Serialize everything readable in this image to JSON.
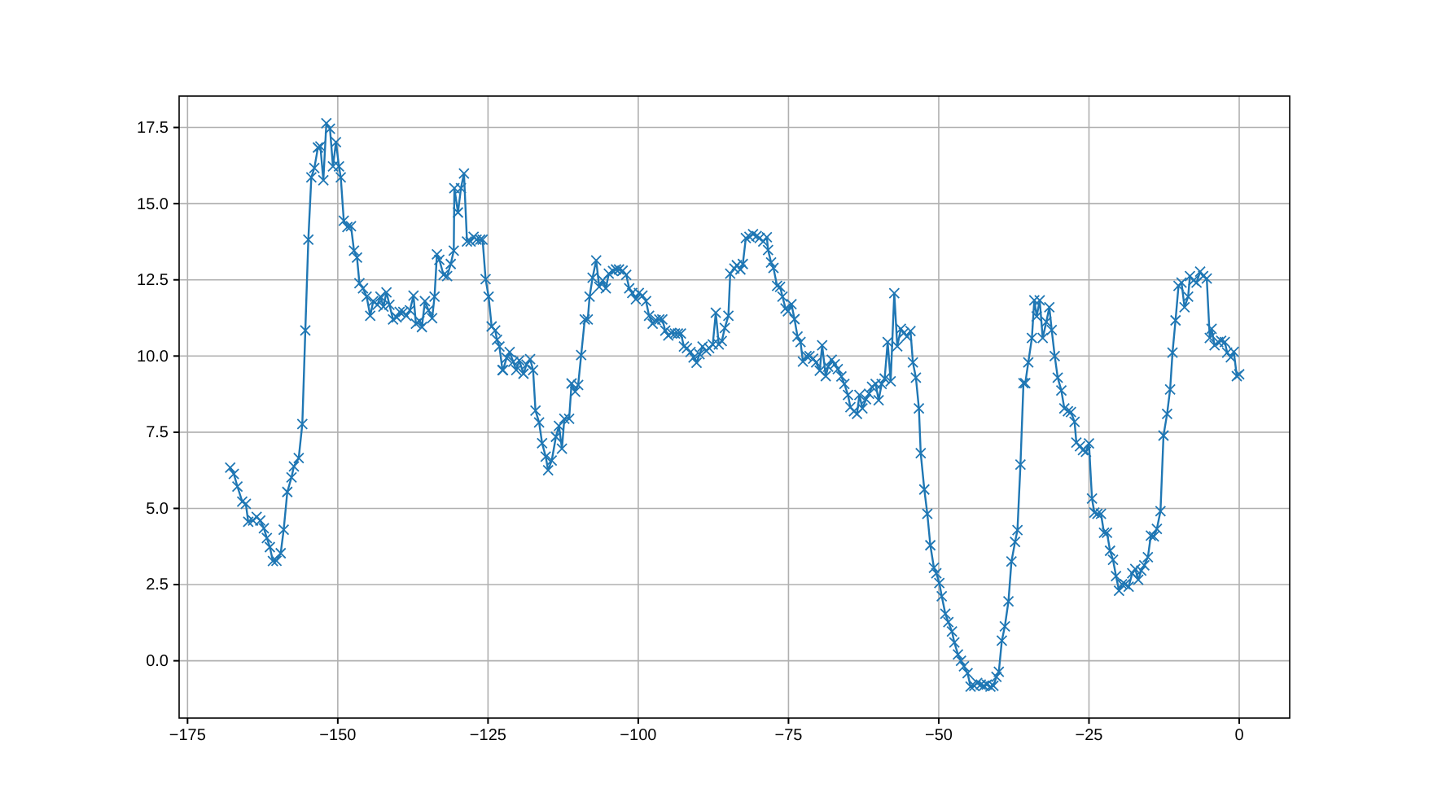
{
  "chart_data": {
    "type": "line",
    "color": "#1f77b4",
    "marker": "cross",
    "line_style": "solid",
    "grid": true,
    "xlim": [
      -176.4,
      8.4
    ],
    "ylim": [
      -1.88,
      18.53
    ],
    "xticks": [
      {
        "value": -175,
        "label": "−175"
      },
      {
        "value": -150,
        "label": "−150"
      },
      {
        "value": -125,
        "label": "−125"
      },
      {
        "value": -100,
        "label": "−100"
      },
      {
        "value": -75,
        "label": "−75"
      },
      {
        "value": -50,
        "label": "−50"
      },
      {
        "value": -25,
        "label": "−25"
      },
      0
    ],
    "yticks": [
      {
        "value": 0,
        "label": "0.0"
      },
      2.5,
      {
        "value": 5,
        "label": "5.0"
      },
      7.5,
      {
        "value": 10,
        "label": "10.0"
      },
      12.5,
      {
        "value": 15,
        "label": "15.0"
      },
      17.5
    ],
    "x": [
      -167.9,
      -167.3,
      -166.7,
      -165.9,
      -165.3,
      -164.9,
      -164.1,
      -163.5,
      -162.9,
      -162.3,
      -161.8,
      -161.3,
      -160.8,
      -160.2,
      -159.5,
      -159.0,
      -158.4,
      -157.7,
      -157.3,
      -156.5,
      -155.9,
      -155.4,
      -154.9,
      -154.4,
      -153.9,
      -153.3,
      -152.9,
      -152.4,
      -151.9,
      -151.3,
      -150.8,
      -150.3,
      -149.8,
      -149.5,
      -149.0,
      -148.4,
      -147.8,
      -147.3,
      -146.8,
      -146.4,
      -145.8,
      -145.2,
      -144.6,
      -144.1,
      -143.4,
      -142.9,
      -142.4,
      -141.9,
      -141.4,
      -140.8,
      -140.2,
      -139.7,
      -139.1,
      -138.6,
      -138.0,
      -137.4,
      -137.0,
      -136.4,
      -136.0,
      -135.5,
      -134.9,
      -134.3,
      -133.9,
      -133.5,
      -133.1,
      -132.4,
      -131.8,
      -131.2,
      -130.7,
      -130.6,
      -130.0,
      -129.5,
      -129.0,
      -128.5,
      -127.9,
      -127.4,
      -126.9,
      -126.3,
      -125.9,
      -125.4,
      -124.9,
      -124.4,
      -123.8,
      -123.5,
      -123.1,
      -122.6,
      -122.5,
      -121.9,
      -121.4,
      -120.8,
      -120.3,
      -119.8,
      -119.1,
      -118.6,
      -118.0,
      -117.5,
      -117.1,
      -116.5,
      -116.0,
      -115.4,
      -115.0,
      -114.4,
      -113.7,
      -113.2,
      -112.7,
      -112.3,
      -111.5,
      -111.1,
      -110.5,
      -110.0,
      -109.5,
      -108.9,
      -108.4,
      -108.1,
      -107.6,
      -107.0,
      -106.5,
      -105.9,
      -105.4,
      -104.9,
      -104.2,
      -103.7,
      -103.2,
      -102.6,
      -102.0,
      -101.5,
      -101.0,
      -100.4,
      -99.9,
      -99.3,
      -98.7,
      -98.2,
      -97.6,
      -97.1,
      -96.5,
      -96.0,
      -95.5,
      -95.0,
      -94.5,
      -93.9,
      -93.4,
      -92.9,
      -92.4,
      -91.9,
      -91.3,
      -90.8,
      -90.3,
      -89.8,
      -89.3,
      -88.7,
      -88.2,
      -87.6,
      -87.1,
      -86.6,
      -86.1,
      -85.6,
      -85.0,
      -84.7,
      -84.0,
      -83.6,
      -83.0,
      -82.6,
      -82.1,
      -81.5,
      -80.9,
      -80.3,
      -79.8,
      -79.2,
      -78.6,
      -78.4,
      -77.9,
      -77.5,
      -76.9,
      -76.4,
      -76.0,
      -75.5,
      -75.1,
      -74.5,
      -74.0,
      -73.5,
      -73.0,
      -72.6,
      -72.0,
      -71.5,
      -70.9,
      -70.4,
      -69.8,
      -69.4,
      -68.8,
      -68.4,
      -67.8,
      -67.3,
      -66.8,
      -66.2,
      -65.7,
      -65.1,
      -64.7,
      -64.1,
      -63.6,
      -63.2,
      -62.7,
      -62.1,
      -61.6,
      -61.1,
      -60.5,
      -60.0,
      -59.5,
      -59.0,
      -58.5,
      -58.0,
      -57.4,
      -56.9,
      -56.3,
      -55.8,
      -55.3,
      -54.7,
      -54.3,
      -53.8,
      -53.3,
      -53.0,
      -52.4,
      -51.9,
      -51.4,
      -50.8,
      -50.4,
      -49.9,
      -49.5,
      -48.9,
      -48.4,
      -47.8,
      -47.4,
      -46.8,
      -46.3,
      -45.8,
      -45.2,
      -44.7,
      -44.1,
      -43.6,
      -43.0,
      -42.5,
      -42.0,
      -41.4,
      -40.9,
      -40.4,
      -40.0,
      -39.5,
      -39.0,
      -38.4,
      -37.9,
      -37.3,
      -36.9,
      -36.4,
      -35.9,
      -35.6,
      -35.1,
      -34.5,
      -34.1,
      -33.7,
      -33.2,
      -32.7,
      -32.1,
      -31.6,
      -31.2,
      -30.7,
      -30.2,
      -29.6,
      -29.1,
      -28.5,
      -28.0,
      -27.4,
      -27.1,
      -26.5,
      -26.0,
      -25.5,
      -25.0,
      -24.5,
      -24.1,
      -23.6,
      -23.0,
      -22.5,
      -22.0,
      -21.5,
      -21.0,
      -20.5,
      -20.0,
      -19.5,
      -19.0,
      -18.4,
      -17.8,
      -17.3,
      -16.8,
      -16.3,
      -15.8,
      -15.2,
      -14.7,
      -14.2,
      -13.7,
      -13.1,
      -12.6,
      -12.0,
      -11.5,
      -11.1,
      -10.6,
      -10.1,
      -9.6,
      -9.1,
      -8.5,
      -8.2,
      -7.6,
      -7.1,
      -6.5,
      -6.0,
      -5.4,
      -4.9,
      -4.6,
      -4.1,
      -3.5,
      -3.0,
      -2.4,
      -2.0,
      -1.4,
      -0.9,
      -0.4,
      0.0
    ],
    "values": [
      6.34,
      6.13,
      5.72,
      5.22,
      5.15,
      4.56,
      4.6,
      4.72,
      4.6,
      4.35,
      4.03,
      3.73,
      3.27,
      3.28,
      3.53,
      4.3,
      5.54,
      6.02,
      6.38,
      6.65,
      7.77,
      10.84,
      13.82,
      15.86,
      16.17,
      16.84,
      16.88,
      15.77,
      17.64,
      17.46,
      16.22,
      17.02,
      16.22,
      15.86,
      14.44,
      14.23,
      14.26,
      13.46,
      13.23,
      12.39,
      12.22,
      11.95,
      11.32,
      11.8,
      11.68,
      11.95,
      11.62,
      12.09,
      11.68,
      11.2,
      11.27,
      11.45,
      11.45,
      11.32,
      11.5,
      11.98,
      11.06,
      11.15,
      10.95,
      11.8,
      11.5,
      11.24,
      11.95,
      13.34,
      13.16,
      12.66,
      12.62,
      13.02,
      13.46,
      15.51,
      14.71,
      15.51,
      15.99,
      13.76,
      13.76,
      13.91,
      13.82,
      13.82,
      13.82,
      12.52,
      11.95,
      10.97,
      10.84,
      10.53,
      10.31,
      9.54,
      9.54,
      9.94,
      10.13,
      9.81,
      9.54,
      9.86,
      9.42,
      9.72,
      9.9,
      9.54,
      8.21,
      7.82,
      7.14,
      6.7,
      6.25,
      6.57,
      7.35,
      7.71,
      6.96,
      7.94,
      7.94,
      9.1,
      8.83,
      9.05,
      10.03,
      11.2,
      11.2,
      11.95,
      12.57,
      13.14,
      12.27,
      12.48,
      12.22,
      12.7,
      12.79,
      12.84,
      12.84,
      12.8,
      12.66,
      12.22,
      12.07,
      11.86,
      12.07,
      11.98,
      11.8,
      11.32,
      11.06,
      11.18,
      11.2,
      11.2,
      10.83,
      10.67,
      10.76,
      10.74,
      10.74,
      10.74,
      10.31,
      10.26,
      10.13,
      9.95,
      9.78,
      10.06,
      10.31,
      10.17,
      10.26,
      10.38,
      11.42,
      10.38,
      10.49,
      10.92,
      11.32,
      12.7,
      12.87,
      12.98,
      12.84,
      13.02,
      13.87,
      13.91,
      14.0,
      13.94,
      13.87,
      13.76,
      13.9,
      13.48,
      13.07,
      12.89,
      12.3,
      12.27,
      11.95,
      11.56,
      11.47,
      11.7,
      11.21,
      10.64,
      10.46,
      9.82,
      10.0,
      10.0,
      9.91,
      9.79,
      9.52,
      10.35,
      9.34,
      9.65,
      9.88,
      9.73,
      9.57,
      9.33,
      9.08,
      8.72,
      8.32,
      8.19,
      8.1,
      8.72,
      8.28,
      8.58,
      8.76,
      8.99,
      9.08,
      8.55,
      9.08,
      9.26,
      10.46,
      9.17,
      12.06,
      10.32,
      10.89,
      10.76,
      10.64,
      10.82,
      9.79,
      9.29,
      8.28,
      6.81,
      5.62,
      4.82,
      3.79,
      3.05,
      2.87,
      2.55,
      2.12,
      1.54,
      1.27,
      0.96,
      0.6,
      0.21,
      0.0,
      -0.18,
      -0.41,
      -0.85,
      -0.82,
      -0.73,
      -0.78,
      -0.82,
      -0.78,
      -0.85,
      -0.82,
      -0.53,
      -0.36,
      0.66,
      1.13,
      1.95,
      3.26,
      3.9,
      4.29,
      6.44,
      9.11,
      9.11,
      9.79,
      10.59,
      11.83,
      11.3,
      11.83,
      10.59,
      11.12,
      11.6,
      10.85,
      10.0,
      9.29,
      8.87,
      8.28,
      8.19,
      8.16,
      7.84,
      7.16,
      7.04,
      6.91,
      6.86,
      7.13,
      5.32,
      4.86,
      4.82,
      4.82,
      4.2,
      4.2,
      3.61,
      3.31,
      2.78,
      2.3,
      2.51,
      2.51,
      2.43,
      2.87,
      3.01,
      2.66,
      2.96,
      3.13,
      3.4,
      4.11,
      4.08,
      4.33,
      4.91,
      7.39,
      8.1,
      8.9,
      10.11,
      11.17,
      12.3,
      12.41,
      11.6,
      11.95,
      12.62,
      12.48,
      12.41,
      12.77,
      12.62,
      12.54,
      10.59,
      10.89,
      10.35,
      10.46,
      10.5,
      10.46,
      10.11,
      9.96,
      10.14,
      9.34,
      9.4
    ]
  }
}
